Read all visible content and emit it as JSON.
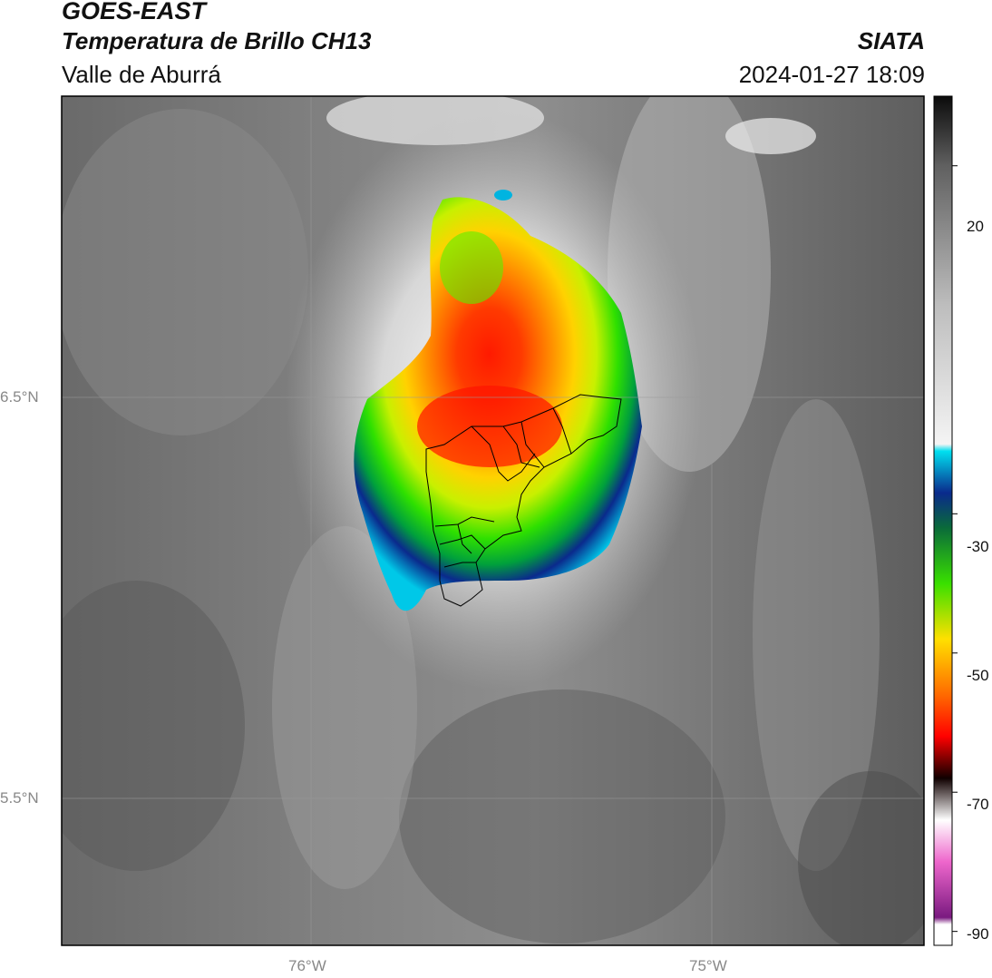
{
  "header": {
    "satellite": "GOES-EAST",
    "product": "Temperatura de Brillo CH13",
    "region": "Valle de Aburrá",
    "organization": "SIATA",
    "datetime": "2024-01-27 18:09"
  },
  "map": {
    "lat_ticks": [
      "6.5°N",
      "5.5°N"
    ],
    "lon_ticks": [
      "76°W",
      "75°W"
    ],
    "background": "grayscale brightness temperature field",
    "storm_core_colors": [
      "#ff1a00",
      "#ff8a00",
      "#ffe000",
      "#2ee000",
      "#00a03c",
      "#0a2a8c",
      "#00c8e8"
    ]
  },
  "colorbar": {
    "ticks": [
      "20",
      "-30",
      "-50",
      "-70",
      "-90"
    ],
    "stops": [
      {
        "value": 30,
        "color": "#0b0b0b"
      },
      {
        "value": 20,
        "color": "#606060"
      },
      {
        "value": 0,
        "color": "#bdbdbd"
      },
      {
        "value": -20,
        "color": "#f4f4f4"
      },
      {
        "value": -21,
        "color": "#00e0f0"
      },
      {
        "value": -27,
        "color": "#0a2a8c"
      },
      {
        "value": -32,
        "color": "#0a6a3a"
      },
      {
        "value": -40,
        "color": "#39e000"
      },
      {
        "value": -48,
        "color": "#ffe000"
      },
      {
        "value": -56,
        "color": "#ff6a00"
      },
      {
        "value": -62,
        "color": "#ff0000"
      },
      {
        "value": -68,
        "color": "#100000"
      },
      {
        "value": -74,
        "color": "#ffffff"
      },
      {
        "value": -80,
        "color": "#ee66cc"
      },
      {
        "value": -88,
        "color": "#7a1a80"
      },
      {
        "value": -89,
        "color": "#ffffff"
      }
    ]
  }
}
